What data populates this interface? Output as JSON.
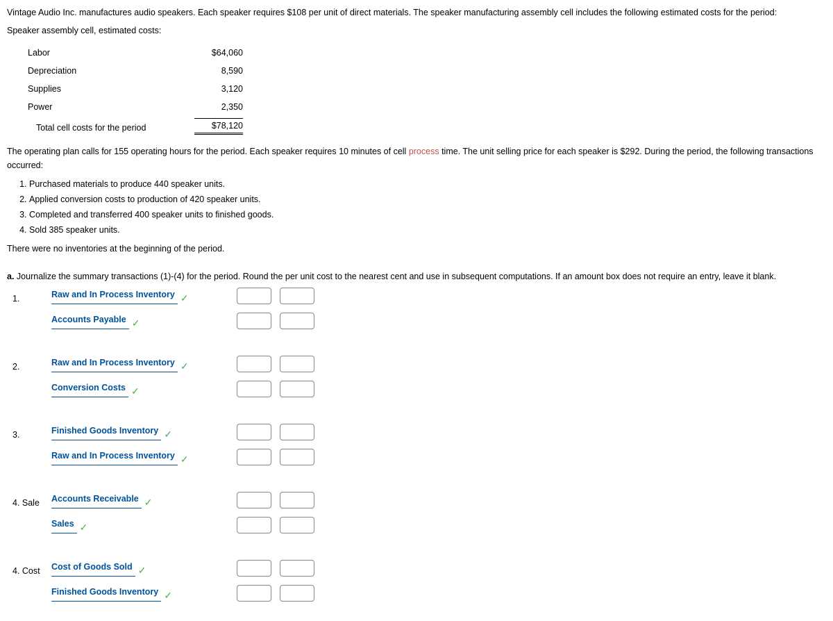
{
  "intro": "Vintage Audio Inc. manufactures audio speakers. Each speaker requires $108 per unit of direct materials. The speaker manufacturing assembly cell includes the following estimated costs for the period:",
  "cost_heading": "Speaker assembly cell, estimated costs:",
  "costs": {
    "rows": [
      {
        "label": "Labor",
        "value": "$64,060"
      },
      {
        "label": "Depreciation",
        "value": "8,590"
      },
      {
        "label": "Supplies",
        "value": "3,120"
      },
      {
        "label": "Power",
        "value": "2,350"
      }
    ],
    "total": {
      "label": "Total cell costs for the period",
      "value": "$78,120"
    }
  },
  "paragraph2_pre": "The operating plan calls for 155 operating hours for the period. Each speaker requires 10 minutes of cell ",
  "process_link": "process",
  "paragraph2_post": " time. The unit selling price for each speaker is $292. During the period, the following transactions occurred:",
  "transactions": [
    "Purchased materials to produce 440 speaker units.",
    "Applied conversion costs to production of 420 speaker units.",
    "Completed and transferred 400 speaker units to finished goods.",
    "Sold 385 speaker units."
  ],
  "no_inv": "There were no inventories at the beginning of the period.",
  "part_a": "Journalize the summary transactions (1)-(4) for the period. Round the per unit cost to the nearest cent and use in subsequent computations. If an amount box does not require an entry, leave it blank.",
  "part_a_label": "a.",
  "journal": [
    {
      "num": "1.",
      "lines": [
        {
          "acct": "Raw and In Process Inventory"
        },
        {
          "acct": "Accounts Payable"
        }
      ]
    },
    {
      "num": "2.",
      "lines": [
        {
          "acct": "Raw and In Process Inventory"
        },
        {
          "acct": "Conversion Costs"
        }
      ]
    },
    {
      "num": "3.",
      "lines": [
        {
          "acct": "Finished Goods Inventory"
        },
        {
          "acct": "Raw and In Process Inventory"
        }
      ]
    },
    {
      "num": "4. Sale",
      "lines": [
        {
          "acct": "Accounts Receivable"
        },
        {
          "acct": "Sales"
        }
      ]
    },
    {
      "num": "4. Cost",
      "lines": [
        {
          "acct": "Cost of Goods Sold"
        },
        {
          "acct": "Finished Goods Inventory"
        }
      ]
    }
  ]
}
